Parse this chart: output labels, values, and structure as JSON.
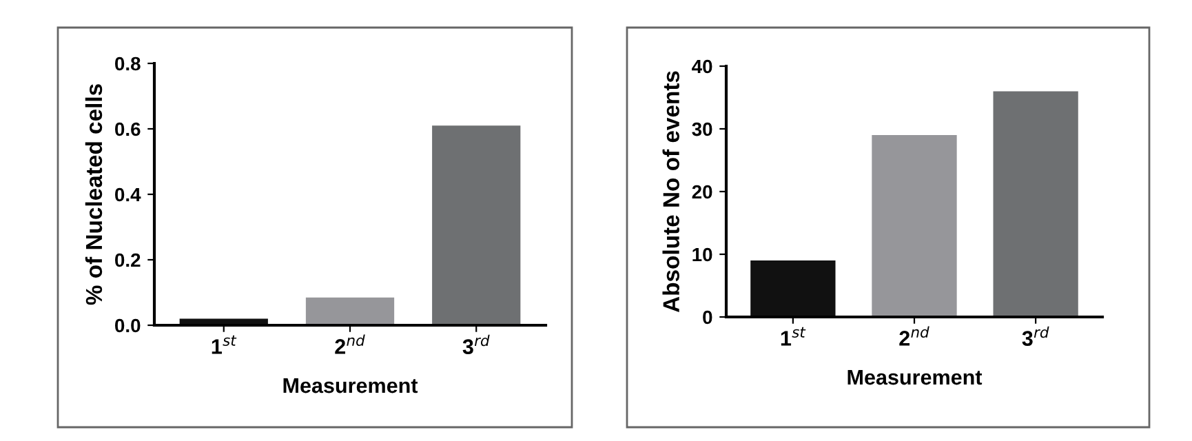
{
  "chart_data": [
    {
      "type": "bar",
      "categories": [
        "1$^{st}$",
        "2$^{nd}$",
        "3$^{rd}$"
      ],
      "values": [
        0.02,
        0.085,
        0.61
      ],
      "colors": [
        "#111111",
        "#96969a",
        "#6e7072"
      ],
      "xlabel": "Measurement",
      "ylabel": "% of Nucleated cells",
      "ylim": [
        0,
        0.8
      ],
      "yticks": [
        {
          "value": 0,
          "label": "0.0"
        },
        0.2,
        0.4,
        0.6,
        0.8
      ],
      "grid": false,
      "legend": false
    },
    {
      "type": "bar",
      "categories": [
        "1$^{st}$",
        "2$^{nd}$",
        "3$^{rd}$"
      ],
      "values": [
        9,
        29,
        36
      ],
      "colors": [
        "#111111",
        "#96969a",
        "#6e7072"
      ],
      "xlabel": "Measurement",
      "ylabel": "Absolute No of events",
      "ylim": [
        0,
        40
      ],
      "yticks": [
        0,
        10,
        20,
        30,
        40
      ],
      "grid": false,
      "legend": false
    }
  ]
}
